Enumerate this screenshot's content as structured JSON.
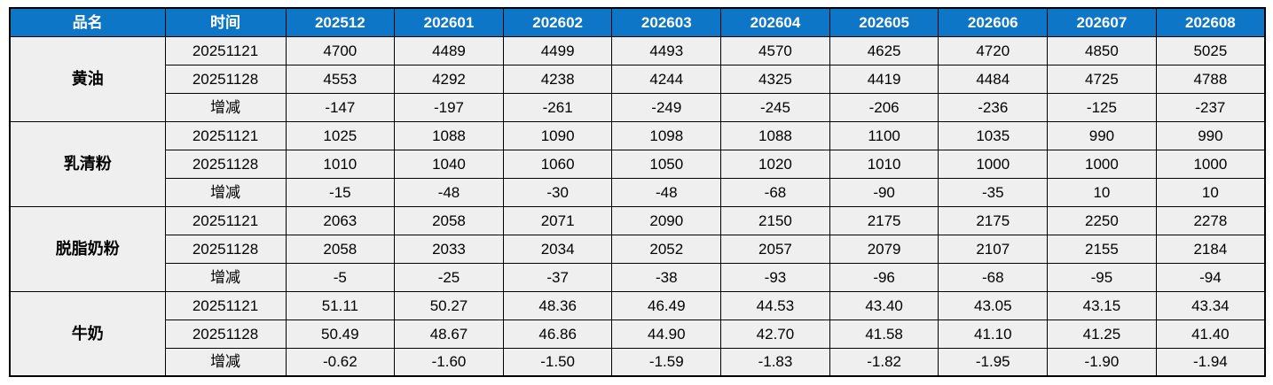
{
  "table": {
    "columns": {
      "product": "品名",
      "time": "时间",
      "months": [
        "202512",
        "202601",
        "202602",
        "202603",
        "202604",
        "202605",
        "202606",
        "202607",
        "202608"
      ]
    },
    "groups": [
      {
        "product": "黄油",
        "rows": [
          {
            "label": "20251121",
            "kind": "price",
            "values": [
              "4700",
              "4489",
              "4499",
              "4493",
              "4570",
              "4625",
              "4720",
              "4850",
              "5025"
            ]
          },
          {
            "label": "20251128",
            "kind": "price",
            "values": [
              "4553",
              "4292",
              "4238",
              "4244",
              "4325",
              "4419",
              "4484",
              "4725",
              "4788"
            ]
          },
          {
            "label": "增减",
            "kind": "change",
            "values": [
              "-147",
              "-197",
              "-261",
              "-249",
              "-245",
              "-206",
              "-236",
              "-125",
              "-237"
            ]
          }
        ]
      },
      {
        "product": "乳清粉",
        "rows": [
          {
            "label": "20251121",
            "kind": "price",
            "values": [
              "1025",
              "1088",
              "1090",
              "1098",
              "1088",
              "1100",
              "1035",
              "990",
              "990"
            ]
          },
          {
            "label": "20251128",
            "kind": "price",
            "values": [
              "1010",
              "1040",
              "1060",
              "1050",
              "1020",
              "1010",
              "1000",
              "1000",
              "1000"
            ]
          },
          {
            "label": "增减",
            "kind": "change",
            "values": [
              "-15",
              "-48",
              "-30",
              "-48",
              "-68",
              "-90",
              "-35",
              "10",
              "10"
            ]
          }
        ]
      },
      {
        "product": "脱脂奶粉",
        "rows": [
          {
            "label": "20251121",
            "kind": "price",
            "values": [
              "2063",
              "2058",
              "2071",
              "2090",
              "2150",
              "2175",
              "2175",
              "2250",
              "2278"
            ]
          },
          {
            "label": "20251128",
            "kind": "price",
            "values": [
              "2058",
              "2033",
              "2034",
              "2052",
              "2057",
              "2079",
              "2107",
              "2155",
              "2184"
            ]
          },
          {
            "label": "增减",
            "kind": "change",
            "values": [
              "-5",
              "-25",
              "-37",
              "-38",
              "-93",
              "-96",
              "-68",
              "-95",
              "-94"
            ]
          }
        ]
      },
      {
        "product": "牛奶",
        "rows": [
          {
            "label": "20251121",
            "kind": "price",
            "values": [
              "51.11",
              "50.27",
              "48.36",
              "46.49",
              "44.53",
              "43.40",
              "43.05",
              "43.15",
              "43.34"
            ]
          },
          {
            "label": "20251128",
            "kind": "price",
            "values": [
              "50.49",
              "48.67",
              "46.86",
              "44.90",
              "42.70",
              "41.58",
              "41.10",
              "41.25",
              "41.40"
            ]
          },
          {
            "label": "增减",
            "kind": "change",
            "values": [
              "-0.62",
              "-1.60",
              "-1.50",
              "-1.59",
              "-1.83",
              "-1.82",
              "-1.95",
              "-1.90",
              "-1.94"
            ]
          }
        ]
      }
    ],
    "colors": {
      "header_bg": "#0E76C6",
      "header_text": "#FFFFFF",
      "cell_bg": "#EFEFEF",
      "border": "#000000",
      "negative_change": "#27BD63",
      "positive_change": "#CC0E1F"
    }
  },
  "chart_data": {
    "type": "table",
    "columns": [
      "品名",
      "时间",
      "202512",
      "202601",
      "202602",
      "202603",
      "202604",
      "202605",
      "202606",
      "202607",
      "202608"
    ],
    "rows": [
      [
        "黄油",
        "20251121",
        4700,
        4489,
        4499,
        4493,
        4570,
        4625,
        4720,
        4850,
        5025
      ],
      [
        "黄油",
        "20251128",
        4553,
        4292,
        4238,
        4244,
        4325,
        4419,
        4484,
        4725,
        4788
      ],
      [
        "黄油",
        "增减",
        -147,
        -197,
        -261,
        -249,
        -245,
        -206,
        -236,
        -125,
        -237
      ],
      [
        "乳清粉",
        "20251121",
        1025,
        1088,
        1090,
        1098,
        1088,
        1100,
        1035,
        990,
        990
      ],
      [
        "乳清粉",
        "20251128",
        1010,
        1040,
        1060,
        1050,
        1020,
        1010,
        1000,
        1000,
        1000
      ],
      [
        "乳清粉",
        "增减",
        -15,
        -48,
        -30,
        -48,
        -68,
        -90,
        -35,
        10,
        10
      ],
      [
        "脱脂奶粉",
        "20251121",
        2063,
        2058,
        2071,
        2090,
        2150,
        2175,
        2175,
        2250,
        2278
      ],
      [
        "脱脂奶粉",
        "20251128",
        2058,
        2033,
        2034,
        2052,
        2057,
        2079,
        2107,
        2155,
        2184
      ],
      [
        "脱脂奶粉",
        "增减",
        -5,
        -25,
        -37,
        -38,
        -93,
        -96,
        -68,
        -95,
        -94
      ],
      [
        "牛奶",
        "20251121",
        51.11,
        50.27,
        48.36,
        46.49,
        44.53,
        43.4,
        43.05,
        43.15,
        43.34
      ],
      [
        "牛奶",
        "20251128",
        50.49,
        48.67,
        46.86,
        44.9,
        42.7,
        41.58,
        41.1,
        41.25,
        41.4
      ],
      [
        "牛奶",
        "增减",
        -0.62,
        -1.6,
        -1.5,
        -1.59,
        -1.83,
        -1.82,
        -1.95,
        -1.9,
        -1.94
      ]
    ],
    "notes": "negative changes shown in green, positive changes shown in red"
  }
}
